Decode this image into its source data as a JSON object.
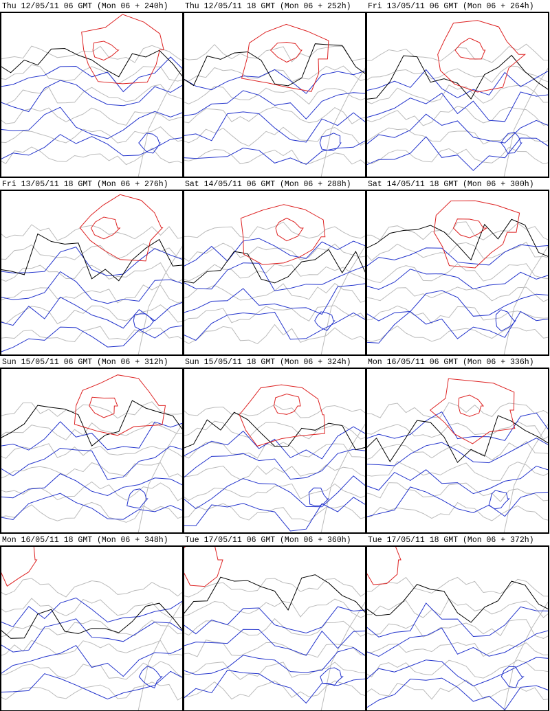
{
  "panels": [
    "Thu 12/05/11 06 GMT (Mon 06 + 240h)",
    "Thu 12/05/11 18 GMT (Mon 06 + 252h)",
    "Fri 13/05/11 06 GMT (Mon 06 + 264h)",
    "Fri 13/05/11 18 GMT (Mon 06 + 276h)",
    "Sat 14/05/11 06 GMT (Mon 06 + 288h)",
    "Sat 14/05/11 18 GMT (Mon 06 + 300h)",
    "Sun 15/05/11 06 GMT (Mon 06 + 312h)",
    "Sun 15/05/11 18 GMT (Mon 06 + 324h)",
    "Mon 16/05/11 06 GMT (Mon 06 + 336h)",
    "Mon 16/05/11 18 GMT (Mon 06 + 348h)",
    "Tue 17/05/11 06 GMT (Mon 06 + 360h)",
    "Tue 17/05/11 18 GMT (Mon 06 + 372h)"
  ]
}
